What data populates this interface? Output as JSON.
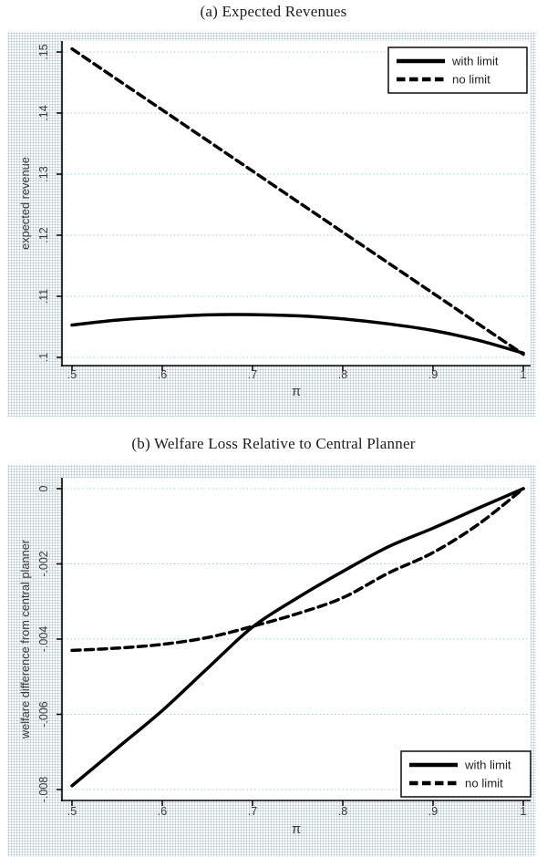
{
  "figure": {
    "panel_a_title": "(a) Expected Revenues",
    "panel_b_title": "(b) Welfare Loss Relative to Central Planner"
  },
  "colors": {
    "line": "#000000",
    "grid": "#9ec6ce",
    "axis": "#000000",
    "tick_label": "#3a3a3a",
    "axis_title": "#3a3a3a",
    "plot_bg": "#ffffff",
    "legend_border": "#1a1a1a",
    "halftone_dot": "#b5c6cf"
  },
  "chart_data": [
    {
      "type": "line",
      "title": "(a) Expected Revenues",
      "xlabel": "π",
      "ylabel": "expected revenue",
      "x_range": [
        0.5,
        1.0
      ],
      "y_range": [
        0.1,
        0.15
      ],
      "grid": "horizontal-dotted",
      "x_ticks": [
        {
          "v": 0.5,
          "label": ".5"
        },
        {
          "v": 0.6,
          "label": ".6"
        },
        {
          "v": 0.7,
          "label": ".7"
        },
        {
          "v": 0.8,
          "label": ".8"
        },
        {
          "v": 0.9,
          "label": ".9"
        },
        {
          "v": 1.0,
          "label": "1"
        }
      ],
      "y_ticks": [
        {
          "v": 0.15,
          "label": ".15"
        },
        {
          "v": 0.14,
          "label": ".14"
        },
        {
          "v": 0.13,
          "label": ".13"
        },
        {
          "v": 0.12,
          "label": ".12"
        },
        {
          "v": 0.11,
          "label": ".11"
        },
        {
          "v": 0.1,
          "label": ".1"
        }
      ],
      "legend": {
        "position": "top-right",
        "entries": [
          {
            "label": "with limit",
            "style": "solid"
          },
          {
            "label": "no limit",
            "style": "dashed"
          }
        ]
      },
      "series": [
        {
          "name": "with limit",
          "style": "solid",
          "color": "#000000",
          "x": [
            0.5,
            0.55,
            0.6,
            0.65,
            0.7,
            0.75,
            0.8,
            0.85,
            0.9,
            0.95,
            1.0
          ],
          "y": [
            0.1053,
            0.1061,
            0.1066,
            0.10695,
            0.107,
            0.1068,
            0.1063,
            0.1055,
            0.1044,
            0.1028,
            0.1007
          ]
        },
        {
          "name": "no limit",
          "style": "dashed",
          "color": "#000000",
          "x": [
            0.5,
            0.55,
            0.6,
            0.65,
            0.7,
            0.75,
            0.8,
            0.85,
            0.9,
            0.95,
            1.0
          ],
          "y": [
            0.1505,
            0.1455,
            0.1405,
            0.1355,
            0.1305,
            0.1255,
            0.1205,
            0.1155,
            0.1105,
            0.1055,
            0.1005
          ]
        }
      ]
    },
    {
      "type": "line",
      "title": "(b) Welfare Loss Relative to Central Planner",
      "xlabel": "π",
      "ylabel": "welfare difference from central planner",
      "x_range": [
        0.5,
        1.0
      ],
      "y_range": [
        -0.008,
        0.0
      ],
      "grid": "horizontal-dotted",
      "x_ticks": [
        {
          "v": 0.5,
          "label": ".5"
        },
        {
          "v": 0.6,
          "label": ".6"
        },
        {
          "v": 0.7,
          "label": ".7"
        },
        {
          "v": 0.8,
          "label": ".8"
        },
        {
          "v": 0.9,
          "label": ".9"
        },
        {
          "v": 1.0,
          "label": "1"
        }
      ],
      "y_ticks": [
        {
          "v": 0.0,
          "label": "0"
        },
        {
          "v": -0.002,
          "label": "-.002"
        },
        {
          "v": -0.004,
          "label": "-.004"
        },
        {
          "v": -0.006,
          "label": "-.006"
        },
        {
          "v": -0.008,
          "label": "-.008"
        }
      ],
      "legend": {
        "position": "bottom-right",
        "entries": [
          {
            "label": "with limit",
            "style": "solid"
          },
          {
            "label": "no limit",
            "style": "dashed"
          }
        ]
      },
      "series": [
        {
          "name": "with limit",
          "style": "solid",
          "color": "#000000",
          "x": [
            0.5,
            0.55,
            0.6,
            0.65,
            0.7,
            0.75,
            0.8,
            0.85,
            0.9,
            0.95,
            1.0
          ],
          "y": [
            -0.0079,
            -0.0069,
            -0.0059,
            -0.00478,
            -0.00368,
            -0.0029,
            -0.0022,
            -0.00155,
            -0.00105,
            -0.00052,
            0.0
          ]
        },
        {
          "name": "no limit",
          "style": "dashed",
          "color": "#000000",
          "x": [
            0.5,
            0.55,
            0.6,
            0.65,
            0.7,
            0.75,
            0.8,
            0.85,
            0.9,
            0.95,
            1.0
          ],
          "y": [
            -0.0043,
            -0.00424,
            -0.00414,
            -0.00396,
            -0.00366,
            -0.00332,
            -0.0029,
            -0.00225,
            -0.0017,
            -0.00095,
            0.0
          ]
        }
      ]
    }
  ]
}
